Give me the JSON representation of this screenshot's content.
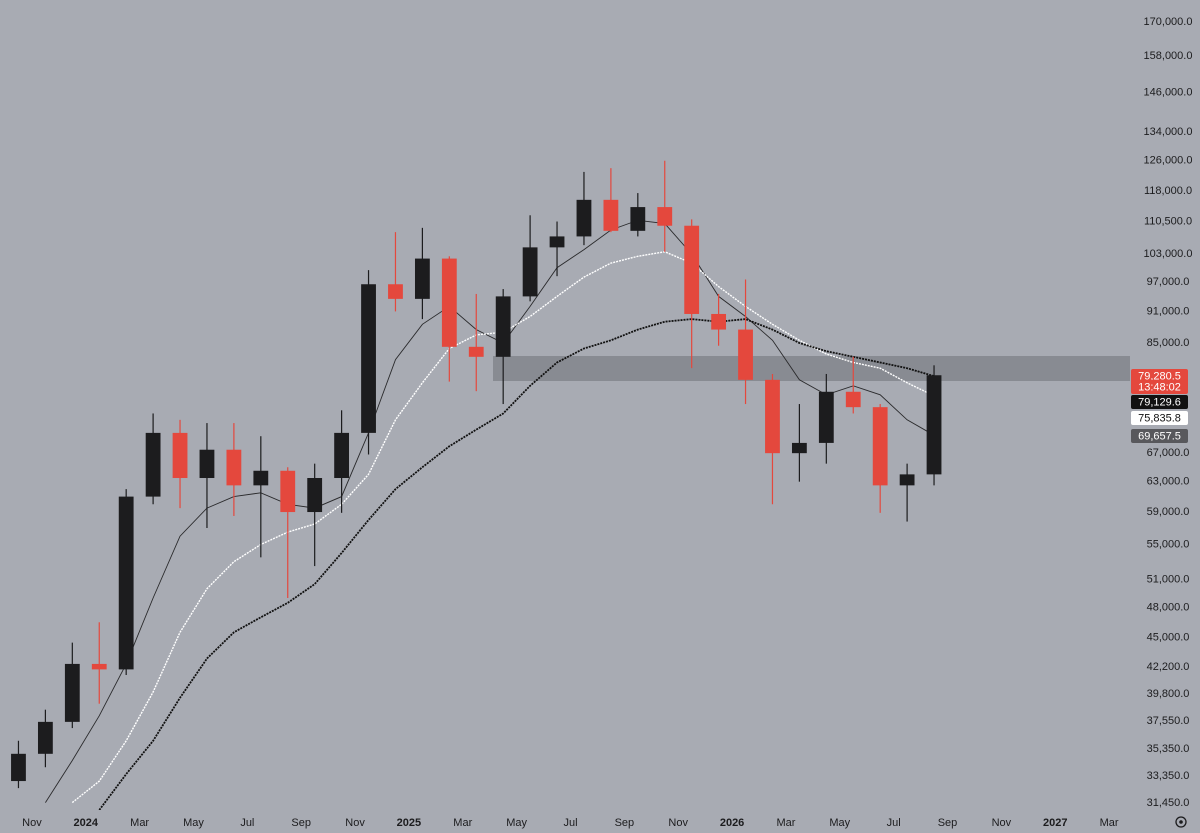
{
  "chart_data": {
    "type": "candlestick",
    "x": [
      "2023-10",
      "2023-11",
      "2023-12",
      "2024-01",
      "2024-02",
      "2024-03",
      "2024-04",
      "2024-05",
      "2024-06",
      "2024-07",
      "2024-08",
      "2024-09",
      "2024-10",
      "2024-11",
      "2024-12",
      "2025-01",
      "2025-02",
      "2025-03",
      "2025-04",
      "2025-05",
      "2025-06",
      "2025-07",
      "2025-08",
      "2025-09",
      "2025-10",
      "2025-11",
      "2025-12",
      "2026-01",
      "2026-02",
      "2026-03",
      "2026-04",
      "2026-05",
      "2026-06",
      "2026-07",
      "2026-08"
    ],
    "open": [
      33000,
      35000,
      37500,
      42500,
      42000,
      61000,
      70000,
      63500,
      67500,
      62500,
      64500,
      59000,
      63500,
      70000,
      96500,
      93500,
      102000,
      84300,
      82500,
      94000,
      104500,
      107000,
      115800,
      108300,
      114000,
      109500,
      90500,
      87500,
      78500,
      67000,
      68500,
      76500,
      74000,
      62500,
      64000
    ],
    "high": [
      36000,
      38500,
      44500,
      46500,
      62000,
      73000,
      72000,
      71500,
      71500,
      69500,
      65000,
      65500,
      73500,
      99500,
      108000,
      109000,
      102500,
      94500,
      95500,
      112000,
      110500,
      123000,
      124000,
      117500,
      126000,
      111000,
      94500,
      97500,
      79500,
      74500,
      79500,
      82500,
      74500,
      65500,
      81000
    ],
    "low": [
      32500,
      34000,
      37000,
      39000,
      41500,
      60000,
      59500,
      57000,
      58500,
      53500,
      49000,
      52500,
      58900,
      66800,
      91000,
      89500,
      78200,
      76600,
      74500,
      93000,
      98200,
      105000,
      108000,
      107000,
      103500,
      80500,
      84500,
      74500,
      60000,
      63000,
      65500,
      73000,
      58900,
      57800,
      62500
    ],
    "close": [
      35000,
      37500,
      42500,
      42000,
      61000,
      70000,
      63500,
      67500,
      62500,
      64500,
      59000,
      63500,
      70000,
      96500,
      93500,
      102000,
      84300,
      82500,
      94000,
      104500,
      107000,
      115800,
      108300,
      114000,
      109500,
      90500,
      87500,
      78500,
      67000,
      68500,
      76500,
      74000,
      62500,
      64000,
      79280.5
    ],
    "up_color": "#1c1c1e",
    "down_color": "#e4483d",
    "lines": [
      {
        "color": "#2a2a2c",
        "width": 0.9,
        "values": [
          null,
          31500,
          34500,
          38000,
          42500,
          49000,
          56000,
          59500,
          61000,
          61500,
          60000,
          59500,
          61000,
          70000,
          82000,
          88500,
          92000,
          87500,
          85000,
          92000,
          100000,
          104000,
          108500,
          110800,
          110000,
          103000,
          94000,
          90000,
          85500,
          78500,
          76000,
          77500,
          76000,
          72000,
          69657.5
        ]
      },
      {
        "color": "#ffffff",
        "width": 1.4,
        "dash": "2 1",
        "values": [
          null,
          null,
          31500,
          33000,
          36000,
          40000,
          45500,
          50000,
          53000,
          55000,
          56500,
          57500,
          60000,
          64000,
          72000,
          78000,
          84000,
          86500,
          87000,
          90000,
          94000,
          98000,
          101000,
          102500,
          103500,
          101000,
          96000,
          92000,
          88500,
          85500,
          83000,
          81500,
          80500,
          78000,
          75835.8
        ]
      },
      {
        "color": "#111111",
        "width": 1.8,
        "dash": "2 1",
        "values": [
          null,
          null,
          null,
          31000,
          33500,
          36000,
          39500,
          43000,
          45500,
          47000,
          48500,
          50500,
          54000,
          58000,
          62000,
          65000,
          68000,
          70500,
          73000,
          77500,
          81500,
          84000,
          85500,
          87500,
          89000,
          89500,
          89000,
          89500,
          87500,
          85000,
          83500,
          82500,
          81500,
          80500,
          79129.6
        ]
      }
    ],
    "log_scale": true,
    "ylim": [
      31000,
      178300
    ],
    "yticks": [
      {
        "value": 170000,
        "label": "170,000.0"
      },
      {
        "value": 158000,
        "label": "158,000.0"
      },
      {
        "value": 146000,
        "label": "146,000.0"
      },
      {
        "value": 134000,
        "label": "134,000.0"
      },
      {
        "value": 126000,
        "label": "126,000.0"
      },
      {
        "value": 118000,
        "label": "118,000.0"
      },
      {
        "value": 110500,
        "label": "110,500.0"
      },
      {
        "value": 103000,
        "label": "103,000.0"
      },
      {
        "value": 97000,
        "label": "97,000.0"
      },
      {
        "value": 91000,
        "label": "91,000.0"
      },
      {
        "value": 85000,
        "label": "85,000.0"
      },
      {
        "value": 67000,
        "label": "67,000.0"
      },
      {
        "value": 63000,
        "label": "63,000.0"
      },
      {
        "value": 59000,
        "label": "59,000.0"
      },
      {
        "value": 55000,
        "label": "55,000.0"
      },
      {
        "value": 51000,
        "label": "51,000.0"
      },
      {
        "value": 48000,
        "label": "48,000.0"
      },
      {
        "value": 45000,
        "label": "45,000.0"
      },
      {
        "value": 42200,
        "label": "42,200.0"
      },
      {
        "value": 39800,
        "label": "39,800.0"
      },
      {
        "value": 37550,
        "label": "37,550.0"
      },
      {
        "value": 35350,
        "label": "35,350.0"
      },
      {
        "value": 33350,
        "label": "33,350.0"
      },
      {
        "value": 31450,
        "label": "31,450.0"
      }
    ],
    "xlim": [
      "2023-10",
      "2027-04"
    ],
    "xticks": [
      {
        "value": "2023-11",
        "label": "Nov"
      },
      {
        "value": "2024-01",
        "label": "2024"
      },
      {
        "value": "2024-03",
        "label": "Mar"
      },
      {
        "value": "2024-05",
        "label": "May"
      },
      {
        "value": "2024-07",
        "label": "Jul"
      },
      {
        "value": "2024-09",
        "label": "Sep"
      },
      {
        "value": "2024-11",
        "label": "Nov"
      },
      {
        "value": "2025-01",
        "label": "2025"
      },
      {
        "value": "2025-03",
        "label": "Mar"
      },
      {
        "value": "2025-05",
        "label": "May"
      },
      {
        "value": "2025-07",
        "label": "Jul"
      },
      {
        "value": "2025-09",
        "label": "Sep"
      },
      {
        "value": "2025-11",
        "label": "Nov"
      },
      {
        "value": "2026-01",
        "label": "2026"
      },
      {
        "value": "2026-03",
        "label": "Mar"
      },
      {
        "value": "2026-05",
        "label": "May"
      },
      {
        "value": "2026-07",
        "label": "Jul"
      },
      {
        "value": "2026-09",
        "label": "Sep"
      },
      {
        "value": "2026-11",
        "label": "Nov"
      },
      {
        "value": "2027-01",
        "label": "2027"
      },
      {
        "value": "2027-03",
        "label": "Mar"
      }
    ],
    "price_tags": [
      {
        "text": "79,280.5",
        "bg": "#e4483d",
        "fg": "#ffffff"
      },
      {
        "text": "13:48:02",
        "bg": "#e4483d",
        "fg": "#ffffff"
      },
      {
        "text": "79,129.6",
        "bg": "#111111",
        "fg": "#ffffff"
      },
      {
        "text": "75,835.8",
        "bg": "#ffffff",
        "fg": "#111111"
      },
      {
        "text": "69,657.5",
        "bg": "#58585c",
        "fg": "#ffffff"
      }
    ]
  }
}
